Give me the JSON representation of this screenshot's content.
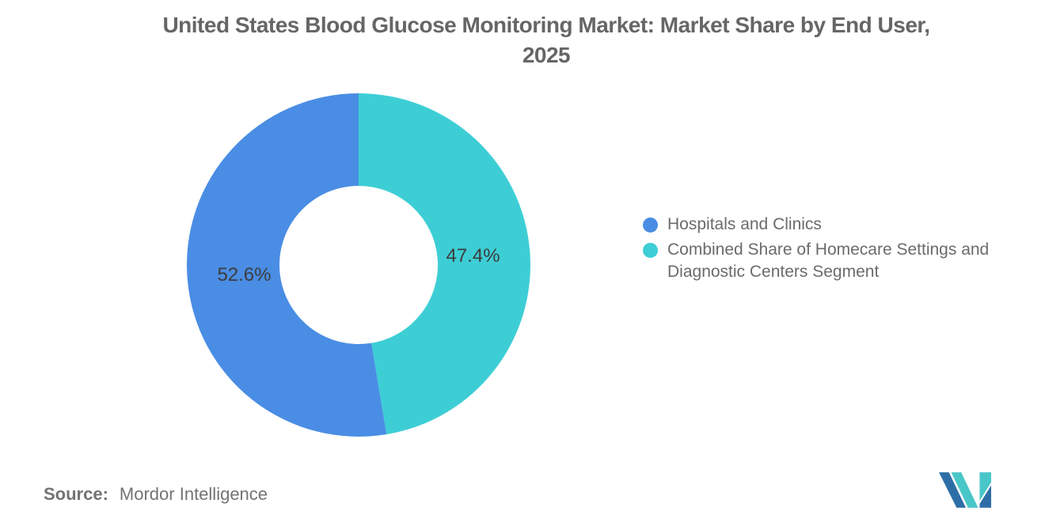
{
  "header": {
    "title_line1": "United States Blood Glucose Monitoring Market: Market Share by End User,",
    "title_line2": "2025"
  },
  "chart_data": {
    "type": "pie",
    "subtype": "donut",
    "title": "United States Blood Glucose Monitoring Market: Market Share by End User, 2025",
    "series": [
      {
        "name": "Hospitals and Clinics",
        "value": 52.6,
        "label": "52.6%",
        "color": "#4A8DE4"
      },
      {
        "name": "Combined Share of Homecare Settings and Diagnostic Centers Segment",
        "value": 47.4,
        "label": "47.4%",
        "color": "#3DCED5"
      }
    ],
    "start_angle_deg": 0,
    "direction": "counterclockwise",
    "inner_radius_ratio": 0.46,
    "legend_position": "right",
    "label_color": "#3C3C3C",
    "background": "#FFFFFF"
  },
  "footer": {
    "source_label": "Source:",
    "source_value": "Mordor Intelligence"
  },
  "branding": {
    "logo_name": "Mordor Intelligence",
    "logo_dark_blue": "#2E6EA6",
    "logo_teal": "#49C6C8"
  },
  "colors": {
    "title_text": "#666668",
    "legend_text": "#6B6B6B",
    "source_text": "#737373"
  }
}
